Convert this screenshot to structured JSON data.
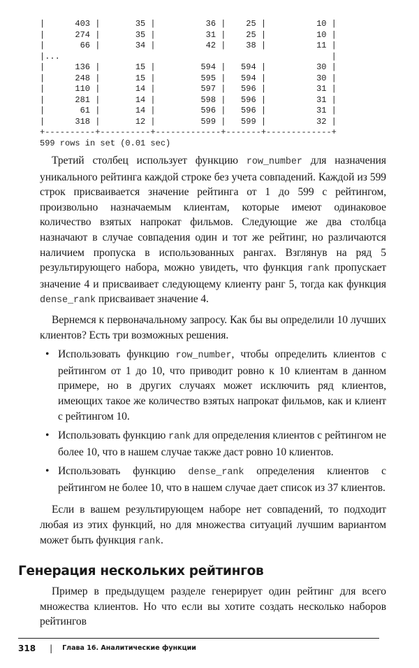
{
  "code_output": {
    "lines": [
      "|      403 |       35 |          36 |    25 |          10 |",
      "|      274 |       35 |          31 |    25 |          10 |",
      "|       66 |       34 |          42 |    38 |          11 |",
      "|...                                                      |",
      "|      136 |       15 |         594 |   594 |          30 |",
      "|      248 |       15 |         595 |   594 |          30 |",
      "|      110 |       14 |         597 |   596 |          31 |",
      "|      281 |       14 |         598 |   596 |          31 |",
      "|       61 |       14 |         596 |   596 |          31 |",
      "|      318 |       12 |         599 |   599 |          32 |",
      "+----------+----------+-------------+-------+-------------+",
      "599 rows in set (0.01 sec)"
    ]
  },
  "para1": {
    "t1": "Третий столбец использует функцию ",
    "c1": "row_number",
    "t2": " для назначения уникального рейтинга каждой строке без учета совпадений. Каждой из 599 строк присваивается значение рейтинга от 1 до 599 с рейтингом, произвольно назначаемым клиентам, которые имеют одинаковое количество взятых напрокат фильмов. Следующие же два столбца назначают в случае совпадения один и тот же рейтинг, но различаются наличием пропуска в использованных рангах. Взглянув на ряд 5 результирующего набора, можно увидеть, что функция ",
    "c2": "rank",
    "t3": " пропускает значение 4 и присваивает следующему клиенту ранг 5, тогда как функция ",
    "c3": "dense_rank",
    "t4": " присваивает значение 4."
  },
  "para2": "Вернемся к первоначальному запросу. Как бы вы определили 10 лучших клиентов? Есть три возможных решения.",
  "bullets": [
    {
      "t1": "Использовать функцию ",
      "code": "row_number",
      "t2": ", чтобы определить клиентов с рейтингом от 1 до 10, что приводит ровно к 10 клиентам в данном примере, но в других случаях может исключить ряд клиентов, имеющих такое же количество взятых напрокат фильмов, как и клиент с рейтингом 10."
    },
    {
      "t1": "Использовать функцию ",
      "code": "rank",
      "t2": " для определения клиентов с рейтингом не более 10, что в нашем случае также даст ровно 10 клиентов."
    },
    {
      "t1": "Использовать функцию ",
      "code": "dense_rank",
      "t2": " определения клиентов с рейтингом не более 10, что в нашем случае дает список из 37 клиентов."
    }
  ],
  "bullet_symbol": "•",
  "para3": {
    "t1": "Если в вашем результирующем наборе нет совпадений, то подходит любая из этих функций, но для множества ситуаций лучшим вариантом может быть функция ",
    "c1": "rank",
    "t2": "."
  },
  "section_heading": "Генерация нескольких рейтингов",
  "para4": "Пример в предыдущем разделе генерирует один рейтинг для всего множества клиентов. Но что если вы хотите создать несколько наборов рейтингов",
  "footer": {
    "page_number": "318",
    "separator": "|",
    "chapter": "Глава 16. Аналитические функции"
  }
}
